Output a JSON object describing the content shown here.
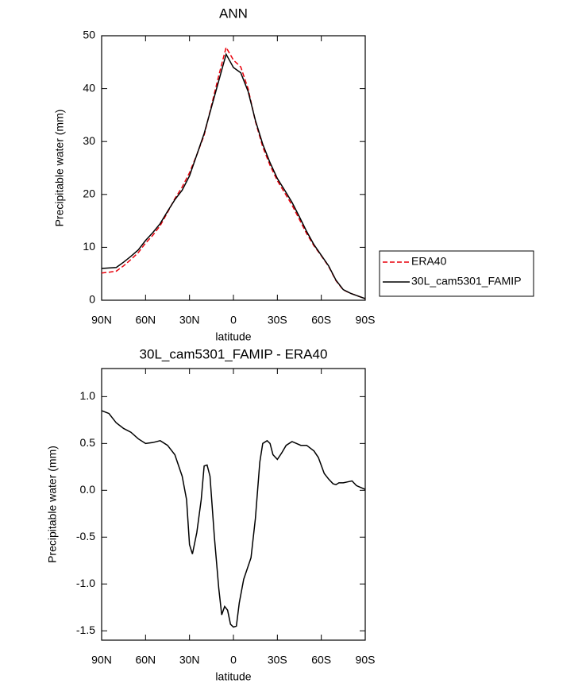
{
  "chart_data": [
    {
      "type": "line",
      "title": "ANN",
      "xlabel": "latitude",
      "ylabel": "Precipitable water (mm)",
      "x": [
        90,
        85,
        80,
        75,
        70,
        65,
        60,
        55,
        50,
        45,
        40,
        35,
        30,
        25,
        20,
        15,
        10,
        5,
        0,
        -5,
        -10,
        -15,
        -20,
        -25,
        -30,
        -35,
        -40,
        -45,
        -50,
        -55,
        -60,
        -65,
        -70,
        -75,
        -80,
        -85,
        -90
      ],
      "series": [
        {
          "name": "ERA40",
          "color": "#e8000b",
          "linestyle": "dashed",
          "values": [
            5.15,
            5.3,
            5.5,
            6.5,
            7.7,
            9.0,
            10.8,
            12.3,
            14.1,
            16.6,
            19.2,
            21.4,
            24.1,
            27.5,
            31.2,
            36.8,
            42.5,
            47.8,
            45.4,
            44.1,
            40.0,
            33.8,
            29.0,
            25.5,
            22.6,
            20.3,
            18.0,
            15.3,
            12.6,
            10.3,
            8.4,
            6.4,
            3.7,
            1.95,
            1.3,
            0.8,
            0.3
          ]
        },
        {
          "name": "30L_cam5301_FAMIP",
          "color": "#000000",
          "linestyle": "solid",
          "values": [
            6.0,
            6.1,
            6.2,
            7.2,
            8.3,
            9.5,
            11.3,
            12.8,
            14.5,
            16.8,
            19.0,
            20.8,
            23.5,
            27.5,
            31.5,
            36.5,
            41.5,
            46.5,
            44.0,
            43.0,
            39.5,
            34.0,
            29.5,
            26.0,
            23.0,
            20.8,
            18.5,
            15.8,
            13.0,
            10.5,
            8.5,
            6.5,
            3.8,
            2.0,
            1.3,
            0.8,
            0.3
          ]
        }
      ],
      "xlim": [
        90,
        -90
      ],
      "xticks": [
        {
          "value": 90,
          "label": "90N"
        },
        {
          "value": 60,
          "label": "60N"
        },
        {
          "value": 30,
          "label": "30N"
        },
        0,
        {
          "value": -30,
          "label": "30S"
        },
        {
          "value": -60,
          "label": "60S"
        },
        {
          "value": -90,
          "label": "90S"
        }
      ],
      "ylim": [
        0,
        50
      ],
      "yticks": [
        0,
        10,
        20,
        30,
        40,
        50
      ],
      "legend": "outside-right"
    },
    {
      "type": "line",
      "title": "30L_cam5301_FAMIP - ERA40",
      "xlabel": "latitude",
      "ylabel": "Precipitable water (mm)",
      "x": [
        90,
        85,
        80,
        75,
        70,
        65,
        60,
        55,
        50,
        45,
        40,
        35,
        32,
        30,
        28,
        25,
        22,
        20,
        18,
        16,
        13,
        10,
        8,
        6,
        4,
        2,
        0,
        -2,
        -4,
        -7,
        -12,
        -15,
        -18,
        -20,
        -23,
        -25,
        -27,
        -30,
        -33,
        -36,
        -40,
        -43,
        -46,
        -50,
        -55,
        -58,
        -62,
        -65,
        -68,
        -70,
        -72,
        -75,
        -78,
        -81,
        -84,
        -87,
        -90
      ],
      "series": [
        {
          "name": null,
          "color": "#000000",
          "linestyle": "solid",
          "values": [
            0.85,
            0.82,
            0.72,
            0.66,
            0.62,
            0.55,
            0.5,
            0.51,
            0.53,
            0.48,
            0.38,
            0.15,
            -0.1,
            -0.58,
            -0.68,
            -0.45,
            -0.1,
            0.26,
            0.27,
            0.15,
            -0.5,
            -1.05,
            -1.33,
            -1.24,
            -1.28,
            -1.43,
            -1.46,
            -1.45,
            -1.2,
            -0.95,
            -0.72,
            -0.3,
            0.3,
            0.5,
            0.53,
            0.5,
            0.38,
            0.33,
            0.4,
            0.48,
            0.52,
            0.5,
            0.48,
            0.48,
            0.42,
            0.35,
            0.18,
            0.12,
            0.07,
            0.06,
            0.08,
            0.08,
            0.09,
            0.1,
            0.05,
            0.03,
            0.01
          ]
        }
      ],
      "xlim": [
        90,
        -90
      ],
      "xticks": [
        {
          "value": 90,
          "label": "90N"
        },
        {
          "value": 60,
          "label": "60N"
        },
        {
          "value": 30,
          "label": "30N"
        },
        0,
        {
          "value": -30,
          "label": "30S"
        },
        {
          "value": -60,
          "label": "60S"
        },
        {
          "value": -90,
          "label": "90S"
        }
      ],
      "ylim": [
        -1.6,
        1.3
      ],
      "yticks": [
        -1.5,
        {
          "value": -1,
          "label": "-1.0"
        },
        -0.5,
        {
          "value": 0,
          "label": "0.0"
        },
        0.5,
        {
          "value": 1,
          "label": "1.0"
        }
      ]
    }
  ]
}
